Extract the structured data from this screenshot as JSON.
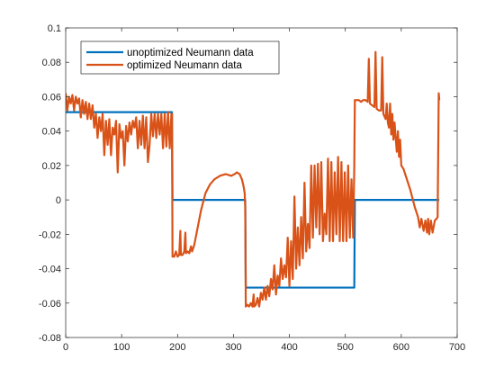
{
  "colors": {
    "series1": "#0072BD",
    "series2": "#D95319",
    "axis": "#262626",
    "background": "#ffffff"
  },
  "chart_data": {
    "type": "line",
    "title": "",
    "xlabel": "",
    "ylabel": "",
    "xlim": [
      0,
      700
    ],
    "ylim": [
      -0.08,
      0.1
    ],
    "x_ticks": [
      0,
      100,
      200,
      300,
      400,
      500,
      600,
      700
    ],
    "x_tick_labels": [
      "0",
      "100",
      "200",
      "300",
      "400",
      "500",
      "600",
      "700"
    ],
    "y_ticks": [
      -0.08,
      -0.06,
      -0.04,
      -0.02,
      0,
      0.02,
      0.04,
      0.06,
      0.08,
      0.1
    ],
    "y_tick_labels": [
      "-0.08",
      "-0.06",
      "-0.04",
      "-0.02",
      "0",
      "0.02",
      "0.04",
      "0.06",
      "0.08",
      "0.1"
    ],
    "grid": false,
    "legend_position": "top-left",
    "series": [
      {
        "name": "unoptimized Neumann data",
        "color": "#0072BD",
        "points": [
          [
            0,
            0.051
          ],
          [
            190,
            0.051
          ],
          [
            191,
            0.0
          ],
          [
            321,
            0.0
          ],
          [
            322,
            -0.051
          ],
          [
            516,
            -0.051
          ],
          [
            517,
            0.0
          ],
          [
            668,
            0.0
          ]
        ]
      },
      {
        "name": "optimized Neumann data",
        "color": "#D95319",
        "points": [
          [
            0,
            0.062
          ],
          [
            3,
            0.052
          ],
          [
            6,
            0.06
          ],
          [
            9,
            0.056
          ],
          [
            12,
            0.061
          ],
          [
            15,
            0.052
          ],
          [
            18,
            0.06
          ],
          [
            21,
            0.056
          ],
          [
            24,
            0.059
          ],
          [
            27,
            0.048
          ],
          [
            30,
            0.058
          ],
          [
            33,
            0.05
          ],
          [
            36,
            0.057
          ],
          [
            39,
            0.047
          ],
          [
            42,
            0.056
          ],
          [
            45,
            0.047
          ],
          [
            48,
            0.055
          ],
          [
            51,
            0.042
          ],
          [
            54,
            0.05
          ],
          [
            57,
            0.036
          ],
          [
            60,
            0.048
          ],
          [
            63,
            0.04
          ],
          [
            66,
            0.05
          ],
          [
            69,
            0.026
          ],
          [
            72,
            0.046
          ],
          [
            75,
            0.032
          ],
          [
            78,
            0.047
          ],
          [
            81,
            0.026
          ],
          [
            84,
            0.042
          ],
          [
            87,
            0.038
          ],
          [
            90,
            0.046
          ],
          [
            93,
            0.016
          ],
          [
            96,
            0.044
          ],
          [
            99,
            0.036
          ],
          [
            102,
            0.04
          ],
          [
            105,
            0.02
          ],
          [
            108,
            0.043
          ],
          [
            111,
            0.034
          ],
          [
            114,
            0.045
          ],
          [
            117,
            0.038
          ],
          [
            120,
            0.046
          ],
          [
            123,
            0.042
          ],
          [
            126,
            0.048
          ],
          [
            129,
            0.03
          ],
          [
            132,
            0.046
          ],
          [
            135,
            0.032
          ],
          [
            138,
            0.049
          ],
          [
            141,
            0.03
          ],
          [
            144,
            0.048
          ],
          [
            147,
            0.022
          ],
          [
            150,
            0.032
          ],
          [
            153,
            0.05
          ],
          [
            156,
            0.037
          ],
          [
            159,
            0.05
          ],
          [
            162,
            0.036
          ],
          [
            165,
            0.05
          ],
          [
            168,
            0.038
          ],
          [
            171,
            0.05
          ],
          [
            174,
            0.03
          ],
          [
            177,
            0.05
          ],
          [
            180,
            0.031
          ],
          [
            183,
            0.051
          ],
          [
            186,
            0.03
          ],
          [
            189,
            0.05
          ],
          [
            190,
            0.05
          ],
          [
            191,
            -0.033
          ],
          [
            194,
            -0.033
          ],
          [
            197,
            -0.03
          ],
          [
            200,
            -0.033
          ],
          [
            203,
            -0.032
          ],
          [
            205,
            -0.018
          ],
          [
            206,
            -0.032
          ],
          [
            209,
            -0.032
          ],
          [
            212,
            -0.03
          ],
          [
            214,
            -0.019
          ],
          [
            215,
            -0.031
          ],
          [
            218,
            -0.03
          ],
          [
            221,
            -0.031
          ],
          [
            224,
            -0.027
          ],
          [
            226,
            -0.03
          ],
          [
            228,
            -0.028
          ],
          [
            230,
            -0.026
          ],
          [
            236,
            -0.016
          ],
          [
            242,
            -0.006
          ],
          [
            250,
            0.004
          ],
          [
            258,
            0.009
          ],
          [
            266,
            0.012
          ],
          [
            276,
            0.014
          ],
          [
            286,
            0.015
          ],
          [
            296,
            0.014
          ],
          [
            302,
            0.015
          ],
          [
            306,
            0.016
          ],
          [
            311,
            0.015
          ],
          [
            315,
            0.012
          ],
          [
            318,
            0.008
          ],
          [
            320,
            0.004
          ],
          [
            321,
            -0.004
          ],
          [
            322,
            -0.062
          ],
          [
            325,
            -0.061
          ],
          [
            328,
            -0.062
          ],
          [
            331,
            -0.06
          ],
          [
            334,
            -0.062
          ],
          [
            336,
            -0.055
          ],
          [
            337,
            -0.062
          ],
          [
            340,
            -0.061
          ],
          [
            343,
            -0.057
          ],
          [
            346,
            -0.062
          ],
          [
            349,
            -0.054
          ],
          [
            352,
            -0.058
          ],
          [
            355,
            -0.051
          ],
          [
            358,
            -0.058
          ],
          [
            361,
            -0.05
          ],
          [
            364,
            -0.056
          ],
          [
            367,
            -0.046
          ],
          [
            370,
            -0.052
          ],
          [
            373,
            -0.038
          ],
          [
            376,
            -0.055
          ],
          [
            379,
            -0.044
          ],
          [
            382,
            -0.05
          ],
          [
            385,
            -0.034
          ],
          [
            388,
            -0.046
          ],
          [
            391,
            -0.038
          ],
          [
            394,
            -0.045
          ],
          [
            397,
            -0.022
          ],
          [
            400,
            -0.05
          ],
          [
            403,
            -0.024
          ],
          [
            406,
            -0.046
          ],
          [
            409,
            0.002
          ],
          [
            412,
            -0.04
          ],
          [
            415,
            -0.016
          ],
          [
            418,
            -0.038
          ],
          [
            421,
            -0.01
          ],
          [
            424,
            -0.034
          ],
          [
            427,
            0.01
          ],
          [
            430,
            -0.03
          ],
          [
            433,
            -0.014
          ],
          [
            436,
            -0.028
          ],
          [
            439,
            0.02
          ],
          [
            442,
            -0.022
          ],
          [
            445,
            0.02
          ],
          [
            448,
            -0.016
          ],
          [
            451,
            0.021
          ],
          [
            454,
            -0.02
          ],
          [
            457,
            0.022
          ],
          [
            460,
            -0.024
          ],
          [
            463,
            -0.008
          ],
          [
            466,
            -0.02
          ],
          [
            469,
            0.024
          ],
          [
            472,
            -0.024
          ],
          [
            475,
            0.022
          ],
          [
            478,
            -0.024
          ],
          [
            481,
            0.016
          ],
          [
            484,
            -0.02
          ],
          [
            487,
            0.025
          ],
          [
            490,
            -0.024
          ],
          [
            493,
            0.022
          ],
          [
            496,
            -0.024
          ],
          [
            499,
            0.016
          ],
          [
            502,
            -0.024
          ],
          [
            505,
            0.02
          ],
          [
            508,
            -0.022
          ],
          [
            511,
            0.012
          ],
          [
            514,
            -0.022
          ],
          [
            516,
            0.02
          ],
          [
            517,
            0.058
          ],
          [
            520,
            0.058
          ],
          [
            524,
            0.058
          ],
          [
            528,
            0.057
          ],
          [
            532,
            0.058
          ],
          [
            536,
            0.058
          ],
          [
            540,
            0.057
          ],
          [
            542,
            0.082
          ],
          [
            544,
            0.056
          ],
          [
            548,
            0.055
          ],
          [
            552,
            0.054
          ],
          [
            554,
            0.086
          ],
          [
            556,
            0.053
          ],
          [
            560,
            0.052
          ],
          [
            564,
            0.052
          ],
          [
            566,
            0.083
          ],
          [
            568,
            0.05
          ],
          [
            572,
            0.047
          ],
          [
            574,
            0.056
          ],
          [
            576,
            0.045
          ],
          [
            578,
            0.042
          ],
          [
            580,
            0.056
          ],
          [
            582,
            0.038
          ],
          [
            584,
            0.05
          ],
          [
            586,
            0.035
          ],
          [
            588,
            0.045
          ],
          [
            590,
            0.036
          ],
          [
            592,
            0.028
          ],
          [
            594,
            0.04
          ],
          [
            596,
            0.025
          ],
          [
            598,
            0.035
          ],
          [
            600,
            0.02
          ],
          [
            604,
            0.018
          ],
          [
            608,
            0.014
          ],
          [
            612,
            0.01
          ],
          [
            616,
            0.006
          ],
          [
            620,
            0.001
          ],
          [
            624,
            -0.004
          ],
          [
            628,
            -0.008
          ],
          [
            630,
            -0.01
          ],
          [
            633,
            -0.016
          ],
          [
            636,
            -0.011
          ],
          [
            640,
            -0.018
          ],
          [
            643,
            -0.012
          ],
          [
            646,
            -0.019
          ],
          [
            648,
            -0.011
          ],
          [
            650,
            -0.02
          ],
          [
            653,
            -0.012
          ],
          [
            656,
            -0.019
          ],
          [
            660,
            -0.012
          ],
          [
            663,
            -0.011
          ],
          [
            665,
            -0.01
          ],
          [
            667,
            0.062
          ],
          [
            668,
            0.058
          ]
        ]
      }
    ]
  }
}
